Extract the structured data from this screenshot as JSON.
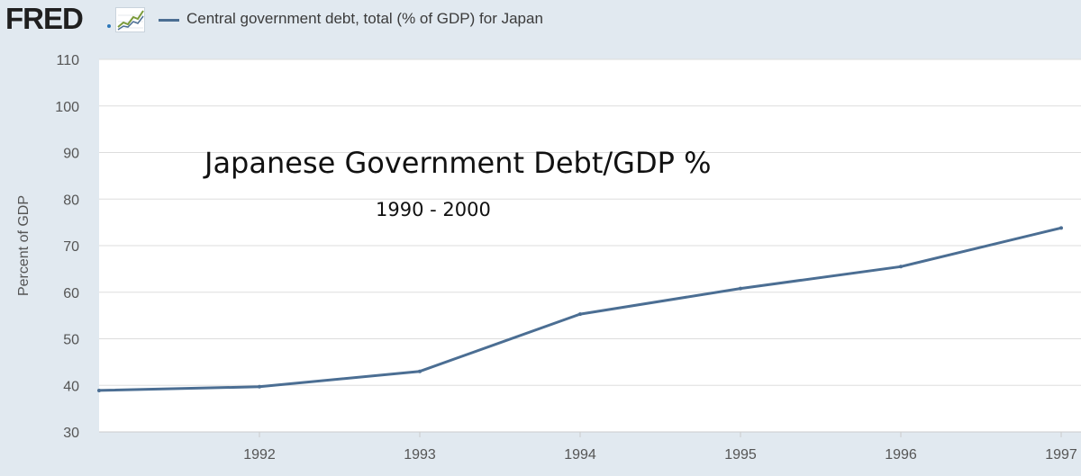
{
  "header": {
    "logo": "FRED",
    "logo_icon": "line-chart-icon",
    "legend_label": "Central government debt, total (% of GDP) for Japan"
  },
  "colors": {
    "page_background": "#e1e9f0",
    "plot_background": "#ffffff",
    "series_line": "#4b6e93",
    "grid": "#dddddd"
  },
  "chart_data": {
    "type": "line",
    "title": "",
    "xlabel": "",
    "ylabel": "Percent of GDP",
    "grid": true,
    "ylim": [
      30,
      110
    ],
    "yticks": [
      "30",
      "40",
      "50",
      "60",
      "70",
      "80",
      "90",
      "100",
      "110"
    ],
    "xlim": [
      "1991",
      "1997"
    ],
    "xticks": [
      "1992",
      "1993",
      "1994",
      "1995",
      "1996",
      "1997"
    ],
    "series": [
      {
        "name": "Central government debt, total (% of GDP) for Japan",
        "x": [
          "1991",
          "1992",
          "1993",
          "1994",
          "1995",
          "1996",
          "1997"
        ],
        "y": [
          38.9,
          39.7,
          43.0,
          55.3,
          60.8,
          65.5,
          73.8
        ]
      }
    ],
    "annotations": [
      {
        "text": "Japanese Government Debt/GDP %"
      },
      {
        "text": "1990 - 2000"
      }
    ]
  }
}
